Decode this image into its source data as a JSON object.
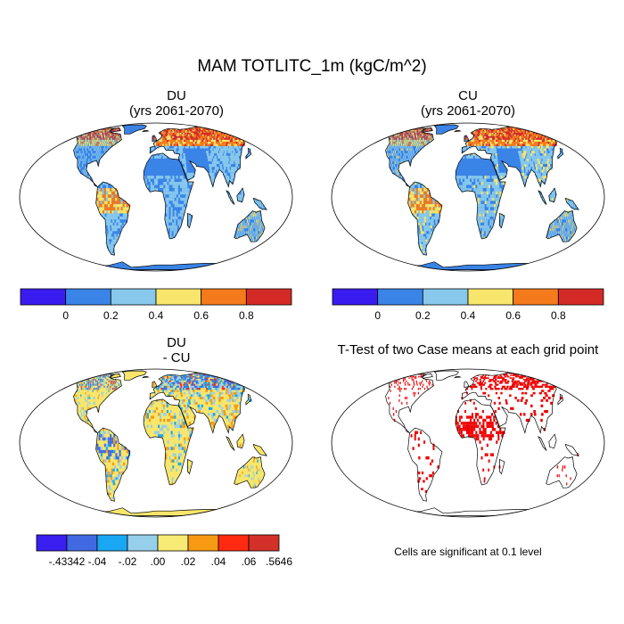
{
  "main_title": "MAM TOTLITC_1m (kgC/m^2)",
  "panels": [
    {
      "id": "du",
      "title_line1": "DU",
      "title_line2": "(yrs 2061-2070)"
    },
    {
      "id": "cu",
      "title_line1": "CU",
      "title_line2": "(yrs 2061-2070)"
    },
    {
      "id": "diff",
      "title_line1": "DU",
      "title_line2": "- CU"
    },
    {
      "id": "ttest",
      "title_line1": "T-Test of two Case means at each grid point",
      "title_line2": ""
    }
  ],
  "colorbar_main": {
    "colors": [
      "#3b1cf0",
      "#3a84e8",
      "#87c8ec",
      "#f7e66b",
      "#f57a1c",
      "#d42a26"
    ],
    "labels": [
      "0",
      "0.2",
      "0.4",
      "0.6",
      "0.8"
    ]
  },
  "colorbar_diff": {
    "colors": [
      "#3a1ff0",
      "#4169e1",
      "#19a6f2",
      "#96cfea",
      "#f7ea75",
      "#f79a14",
      "#ff2a10",
      "#d23028"
    ],
    "labels": [
      "-.43342",
      "-.04",
      "-.02",
      ".00",
      ".02",
      ".04",
      ".06",
      ".5646"
    ]
  },
  "significance_note": "Cells are significant at 0.1 level",
  "colors": {
    "ocean": "#ffffff",
    "land_du_base": "#3a84e8",
    "land_diff_base": "#f7e66b",
    "signif": "#ee0000"
  }
}
